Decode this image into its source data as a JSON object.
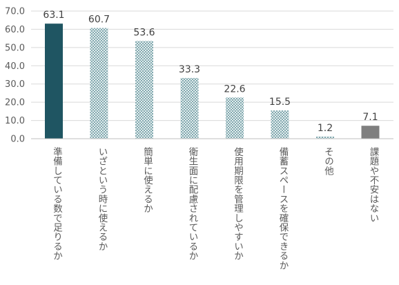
{
  "chart_data": {
    "type": "bar",
    "title": "",
    "xlabel": "",
    "ylabel": "",
    "ylim": [
      0,
      70
    ],
    "yticks": [
      "0.0",
      "10.0",
      "20.0",
      "30.0",
      "40.0",
      "50.0",
      "60.0",
      "70.0"
    ],
    "grid": true,
    "legend": "none",
    "categories": [
      "準備している数で足りるか",
      "いざという時に使えるか",
      "簡単に使えるか",
      "衛生面に配慮されているか",
      "使用期限を管理しやすいか",
      "備蓄スペースを確保できるか",
      "その他",
      "課題や不安はない"
    ],
    "values": [
      63.1,
      60.7,
      53.6,
      33.3,
      22.6,
      15.5,
      1.2,
      7.1
    ],
    "value_labels": [
      "63.1",
      "60.7",
      "53.6",
      "33.3",
      "22.6",
      "15.5",
      "1.2",
      "7.1"
    ],
    "bar_styles": [
      "solid-teal",
      "pattern",
      "pattern",
      "pattern",
      "pattern",
      "pattern",
      "pattern",
      "solid-gray"
    ],
    "colors": {
      "solid_teal": "#1f5562",
      "pattern_fill": "#6e9aa2",
      "pattern_bg": "#e4eeef",
      "solid_gray": "#7f7f7f"
    }
  }
}
